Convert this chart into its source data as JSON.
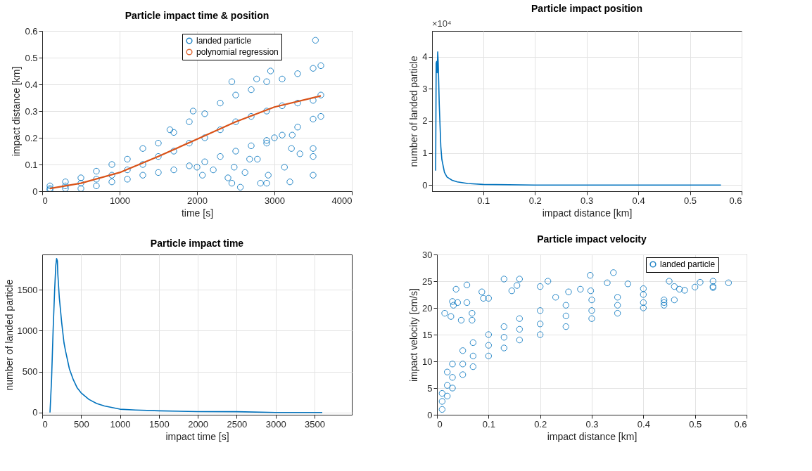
{
  "chart_data": [
    {
      "type": "scatter",
      "title": "Particle impact time & position",
      "xlabel": "time [s]",
      "ylabel": "impact distance [km]",
      "xlim": [
        0,
        4000
      ],
      "xticks": [
        0,
        1000,
        2000,
        3000,
        4000
      ],
      "ylim": [
        0,
        0.6
      ],
      "yticks": [
        0,
        0.1,
        0.2,
        0.3,
        0.4,
        0.5,
        0.6
      ],
      "grid": true,
      "legend": "top right",
      "series": [
        {
          "name": "landed particle",
          "color": "#0072bd",
          "marker": "circle",
          "x": [
            100,
            100,
            100,
            300,
            300,
            300,
            500,
            500,
            500,
            700,
            700,
            700,
            900,
            900,
            900,
            1100,
            1100,
            1100,
            1300,
            1300,
            1300,
            1500,
            1500,
            1500,
            1700,
            1700,
            1700,
            1900,
            1900,
            1900,
            2100,
            2100,
            2100,
            2300,
            2300,
            2300,
            2500,
            2500,
            2500,
            2700,
            2700,
            2700,
            2900,
            2900,
            2900,
            3100,
            3100,
            3100,
            3300,
            3300,
            3300,
            3500,
            3500,
            3500,
            3600,
            3600,
            3600,
            2560,
            2450,
            2400,
            2820,
            2900,
            2920,
            3200,
            3500,
            3130,
            3500,
            3500,
            3330,
            3220,
            2780,
            2680,
            2620,
            2480,
            2210,
            2070,
            2000,
            2900,
            3000,
            3230,
            3530,
            2950,
            2450,
            2770,
            1950,
            1650
          ],
          "values": [
            0.005,
            0.01,
            0.02,
            0.01,
            0.02,
            0.035,
            0.01,
            0.03,
            0.05,
            0.02,
            0.045,
            0.075,
            0.035,
            0.06,
            0.1,
            0.045,
            0.08,
            0.12,
            0.06,
            0.1,
            0.16,
            0.07,
            0.13,
            0.18,
            0.08,
            0.15,
            0.22,
            0.095,
            0.18,
            0.26,
            0.11,
            0.2,
            0.29,
            0.13,
            0.23,
            0.33,
            0.15,
            0.26,
            0.36,
            0.17,
            0.28,
            0.38,
            0.19,
            0.3,
            0.41,
            0.21,
            0.32,
            0.42,
            0.24,
            0.33,
            0.44,
            0.27,
            0.34,
            0.46,
            0.28,
            0.36,
            0.47,
            0.015,
            0.03,
            0.05,
            0.03,
            0.03,
            0.06,
            0.035,
            0.06,
            0.09,
            0.16,
            0.13,
            0.14,
            0.16,
            0.12,
            0.12,
            0.07,
            0.09,
            0.08,
            0.06,
            0.09,
            0.18,
            0.2,
            0.21,
            0.565,
            0.45,
            0.41,
            0.42,
            0.3,
            0.23
          ]
        },
        {
          "name": "polynomial regression",
          "color": "#d95319",
          "type": "line",
          "line_style": "solid",
          "x": [
            100,
            500,
            1000,
            1500,
            2000,
            2500,
            3000,
            3600
          ],
          "values": [
            0.01,
            0.03,
            0.07,
            0.13,
            0.195,
            0.26,
            0.315,
            0.357
          ]
        }
      ]
    },
    {
      "type": "line",
      "title": "Particle impact position",
      "xlabel": "impact distance [km]",
      "ylabel": "number of landed particle",
      "annotations": [
        "×10⁴"
      ],
      "xlim": [
        0.001,
        0.6
      ],
      "xticks": [
        0.1,
        0.2,
        0.3,
        0.4,
        0.5,
        0.6
      ],
      "ylim": [
        -0.19,
        4.8
      ],
      "yticks": [
        0,
        1,
        2,
        3,
        4
      ],
      "grid": true,
      "line_style": "solid",
      "series": [
        {
          "color": "#0072bd",
          "x": [
            0.008,
            0.009,
            0.01,
            0.011,
            0.012,
            0.013,
            0.015,
            0.018,
            0.02,
            0.025,
            0.03,
            0.04,
            0.05,
            0.07,
            0.1,
            0.2,
            0.3,
            0.4,
            0.56
          ],
          "values": [
            0.45,
            3.8,
            3.85,
            3.5,
            4.15,
            3.8,
            2.5,
            1.2,
            0.8,
            0.4,
            0.25,
            0.15,
            0.1,
            0.05,
            0.02,
            0,
            0,
            0,
            0
          ]
        }
      ]
    },
    {
      "type": "line",
      "title": "Particle impact time",
      "xlabel": "impact time [s]",
      "ylabel": "number of landed particle",
      "xlim": [
        0,
        3980
      ],
      "xticks": [
        0,
        500,
        1000,
        1500,
        2000,
        2500,
        3000,
        3500
      ],
      "ylim": [
        -28,
        1930
      ],
      "yticks": [
        0,
        500,
        1000,
        1500
      ],
      "grid": true,
      "line_style": "solid",
      "series": [
        {
          "color": "#0072bd",
          "x": [
            100,
            120,
            140,
            160,
            175,
            185,
            195,
            200,
            220,
            250,
            280,
            300,
            350,
            400,
            450,
            500,
            600,
            700,
            800,
            1000,
            1200,
            1500,
            2000,
            2500,
            3000,
            3600
          ],
          "values": [
            0,
            400,
            1000,
            1500,
            1800,
            1880,
            1850,
            1700,
            1400,
            1100,
            850,
            750,
            530,
            400,
            300,
            240,
            160,
            110,
            80,
            40,
            30,
            20,
            10,
            10,
            0,
            0
          ]
        }
      ]
    },
    {
      "type": "scatter",
      "title": "Particle impact velocity",
      "xlabel": "impact distance [km]",
      "ylabel": "impact velocity [cm/s]",
      "xlim": [
        0,
        0.6
      ],
      "xticks": [
        0,
        0.1,
        0.2,
        0.3,
        0.4,
        0.5,
        0.6
      ],
      "ylim": [
        0,
        30
      ],
      "yticks": [
        0,
        5,
        10,
        15,
        20,
        25,
        30
      ],
      "grid": true,
      "legend": "top right",
      "series": [
        {
          "name": "landed particle",
          "color": "#0072bd",
          "marker": "circle",
          "x": [
            0.01,
            0.01,
            0.01,
            0.02,
            0.02,
            0.02,
            0.03,
            0.03,
            0.03,
            0.05,
            0.05,
            0.05,
            0.07,
            0.07,
            0.07,
            0.1,
            0.1,
            0.1,
            0.13,
            0.13,
            0.13,
            0.16,
            0.16,
            0.16,
            0.2,
            0.2,
            0.2,
            0.25,
            0.25,
            0.25,
            0.3,
            0.3,
            0.3,
            0.35,
            0.35,
            0.35,
            0.4,
            0.4,
            0.4,
            0.44,
            0.44,
            0.44,
            0.46,
            0.015,
            0.027,
            0.03,
            0.032,
            0.037,
            0.04,
            0.047,
            0.058,
            0.058,
            0.068,
            0.068,
            0.087,
            0.09,
            0.1,
            0.13,
            0.16,
            0.155,
            0.145,
            0.2,
            0.215,
            0.23,
            0.255,
            0.278,
            0.297,
            0.298,
            0.33,
            0.342,
            0.37,
            0.4,
            0.45,
            0.46,
            0.47,
            0.48,
            0.5,
            0.51,
            0.535,
            0.535,
            0.535,
            0.565
          ],
          "values": [
            1,
            2.5,
            4,
            3.5,
            5.5,
            8,
            5,
            7,
            9.5,
            7.5,
            9.5,
            12,
            9,
            11,
            13.5,
            11,
            13,
            15,
            12.5,
            14.5,
            16.5,
            14,
            16,
            18,
            15,
            17,
            19.5,
            16.5,
            18.5,
            20.5,
            18,
            19.5,
            21.5,
            19,
            20.5,
            22,
            20,
            21,
            22.5,
            20.5,
            21,
            21.5,
            21.5,
            19,
            18.4,
            21.2,
            20.5,
            23.5,
            21,
            17.7,
            24.3,
            21,
            19,
            17.7,
            23,
            21.8,
            21.8,
            25.4,
            25.4,
            24.2,
            23.2,
            24,
            25,
            22,
            23,
            23.5,
            26.1,
            23.2,
            24.7,
            26.6,
            24.5,
            23.6,
            25,
            24,
            23.5,
            23.3,
            23.9,
            24.8,
            25,
            24,
            23.8,
            24.7
          ]
        }
      ]
    }
  ]
}
